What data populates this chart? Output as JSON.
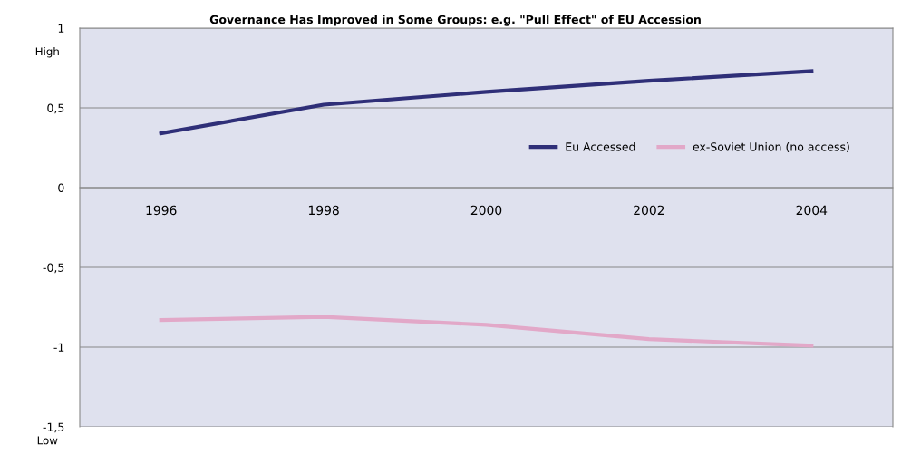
{
  "chart_data": {
    "type": "line",
    "title": "Governance Has Improved in Some Groups: e.g. \"Pull Effect\" of EU Accession",
    "categories": [
      "1996",
      "1998",
      "2000",
      "2002",
      "2004"
    ],
    "series": [
      {
        "name": "Eu Accessed",
        "color": "#2f2f78",
        "values": [
          0.34,
          0.52,
          0.6,
          0.67,
          0.73
        ]
      },
      {
        "name": "ex-Soviet Union (no access)",
        "color": "#e2a8c8",
        "values": [
          -0.83,
          -0.81,
          -0.86,
          -0.95,
          -0.99
        ]
      }
    ],
    "ylim": [
      -1.5,
      1
    ],
    "yticks": [
      {
        "value": -1.5,
        "label": "-1,5"
      },
      -1,
      {
        "value": -0.5,
        "label": "-0,5"
      },
      0,
      {
        "value": 0.5,
        "label": "0,5"
      },
      1
    ],
    "annotations": [
      "High",
      "Low"
    ],
    "grid": "y",
    "legend": "right",
    "marker": "none",
    "line_style": "solid"
  }
}
